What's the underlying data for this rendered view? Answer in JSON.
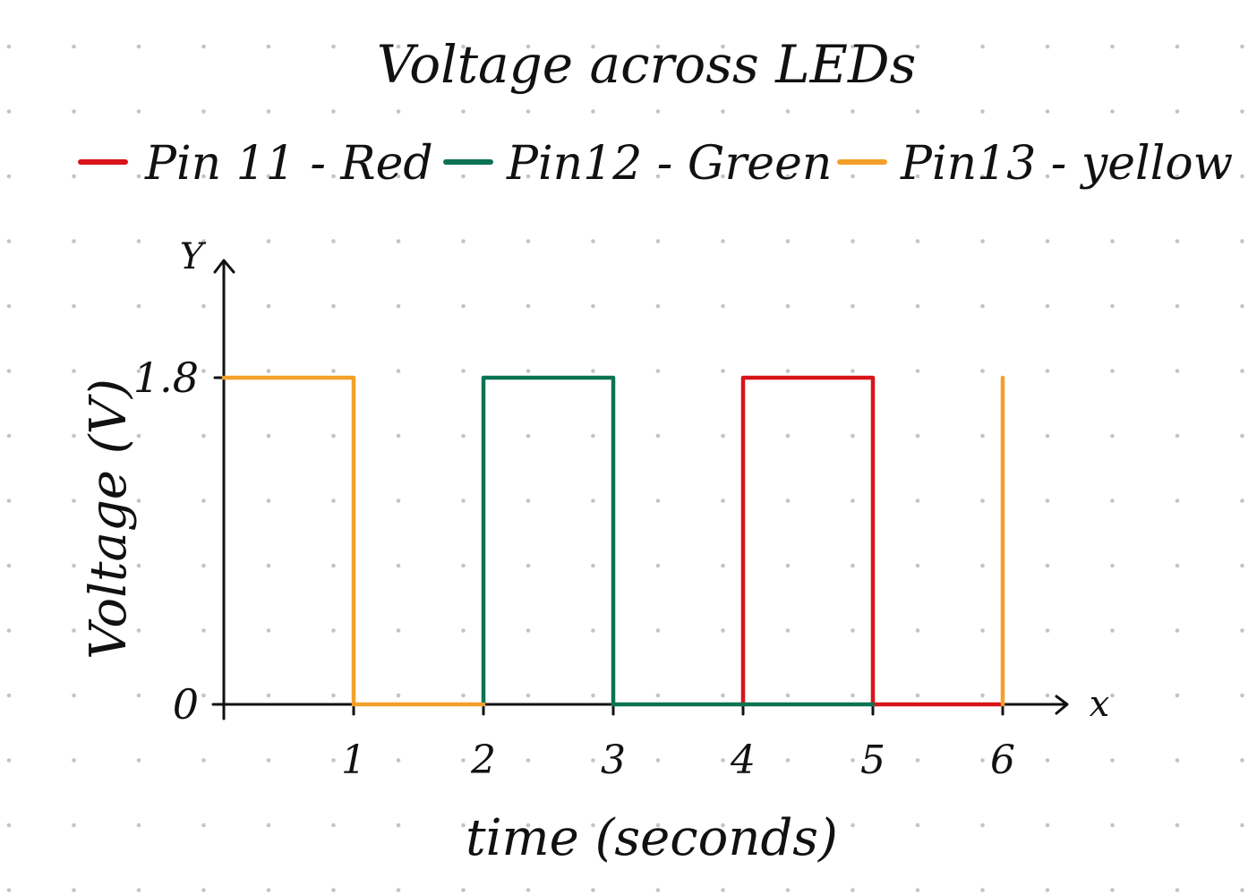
{
  "chart_data": {
    "type": "line",
    "title": "Voltage across LEDs",
    "xlabel": "time (seconds)",
    "ylabel": "Voltage (V)",
    "x_axis_letter": "x",
    "y_axis_letter": "Y",
    "xlim": [
      0,
      6.6
    ],
    "ylim": [
      0,
      1.8
    ],
    "x_ticks": [
      1,
      2,
      3,
      4,
      5,
      6
    ],
    "y_ticks": [
      {
        "value": 0,
        "label": "0"
      },
      {
        "value": 1.8,
        "label": "1.8"
      }
    ],
    "legend_position": "top",
    "series": [
      {
        "name": "Pin 11 - Red",
        "color": "#d8141a",
        "points": [
          [
            4,
            0
          ],
          [
            4,
            1.8
          ],
          [
            5,
            1.8
          ],
          [
            5,
            0
          ],
          [
            6,
            0
          ]
        ]
      },
      {
        "name": "Pin12 - Green",
        "color": "#0b7353",
        "points": [
          [
            2,
            0
          ],
          [
            2,
            1.8
          ],
          [
            3,
            1.8
          ],
          [
            3,
            0
          ],
          [
            5,
            0
          ]
        ]
      },
      {
        "name": "Pin13 - yellow",
        "color": "#f3a02a",
        "points": [
          [
            0,
            1.8
          ],
          [
            1,
            1.8
          ],
          [
            1,
            0
          ],
          [
            2,
            0
          ],
          null,
          [
            6,
            0
          ],
          [
            6,
            1.8
          ]
        ]
      }
    ]
  }
}
